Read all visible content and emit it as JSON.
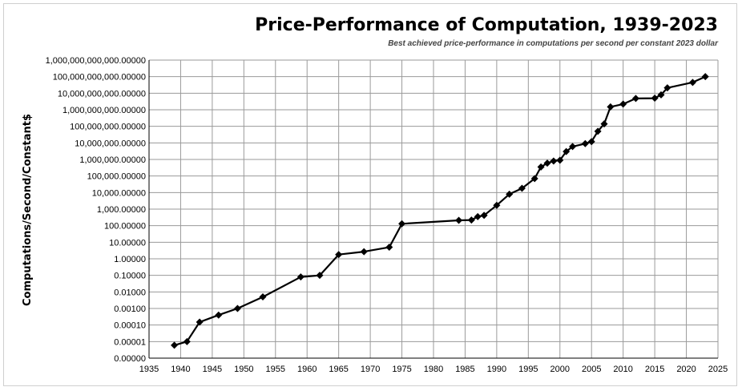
{
  "chart_data": {
    "type": "line",
    "title": "Price-Performance of Computation, 1939-2023",
    "subtitle": "Best achieved price-performance in computations per second per constant 2023 dollar",
    "xlabel": "",
    "ylabel": "Computations/Second/Constant$",
    "xlim": [
      1935,
      2025
    ],
    "x_ticks": [
      1935,
      1940,
      1945,
      1950,
      1955,
      1960,
      1965,
      1970,
      1975,
      1980,
      1985,
      1990,
      1995,
      2000,
      2005,
      2010,
      2015,
      2020,
      2025
    ],
    "ylim": [
      1e-06,
      1000000000000
    ],
    "y_scale": "log",
    "y_ticks": [
      1e-06,
      1e-05,
      0.0001,
      0.001,
      0.01,
      0.1,
      1,
      10,
      100,
      1000,
      10000,
      100000,
      1000000,
      10000000,
      100000000,
      1000000000,
      10000000000,
      100000000000,
      1000000000000
    ],
    "y_tick_labels": [
      "0.00000",
      "0.00001",
      "0.00010",
      "0.00100",
      "0.01000",
      "0.10000",
      "1.00000",
      "10.00000",
      "100.00000",
      "1,000.00000",
      "10,000.00000",
      "100,000.00000",
      "1,000,000.00000",
      "10,000,000.00000",
      "100,000,000.00000",
      "1,000,000,000.00000",
      "10,000,000,000.00000",
      "100,000,000,000.00000",
      "1,000,000,000,000.00000"
    ],
    "grid": true,
    "legend": "none",
    "series": [
      {
        "marker": "diamond",
        "color": "#000000",
        "points": [
          [
            1939,
            6e-06
          ],
          [
            1941,
            1e-05
          ],
          [
            1943,
            0.00015
          ],
          [
            1946,
            0.0004
          ],
          [
            1949,
            0.001
          ],
          [
            1953,
            0.005
          ],
          [
            1959,
            0.08
          ],
          [
            1962,
            0.1
          ],
          [
            1965,
            1.8
          ],
          [
            1969,
            2.7
          ],
          [
            1973,
            5
          ],
          [
            1975,
            130
          ],
          [
            1984,
            210
          ],
          [
            1986,
            220
          ],
          [
            1987,
            350
          ],
          [
            1988,
            420
          ],
          [
            1990,
            1700
          ],
          [
            1992,
            8000
          ],
          [
            1994,
            18000
          ],
          [
            1996,
            70000
          ],
          [
            1997,
            350000
          ],
          [
            1998,
            600000
          ],
          [
            1999,
            800000
          ],
          [
            2000,
            900000
          ],
          [
            2001,
            3000000
          ],
          [
            2002,
            6000000
          ],
          [
            2004,
            9000000
          ],
          [
            2005,
            12000000
          ],
          [
            2006,
            50000000
          ],
          [
            2007,
            140000000
          ],
          [
            2008,
            1500000000
          ],
          [
            2010,
            2200000000
          ],
          [
            2012,
            4800000000
          ],
          [
            2015,
            5000000000
          ],
          [
            2016,
            8000000000
          ],
          [
            2017,
            21000000000
          ],
          [
            2021,
            45000000000
          ],
          [
            2023,
            100000000000
          ]
        ]
      }
    ]
  }
}
